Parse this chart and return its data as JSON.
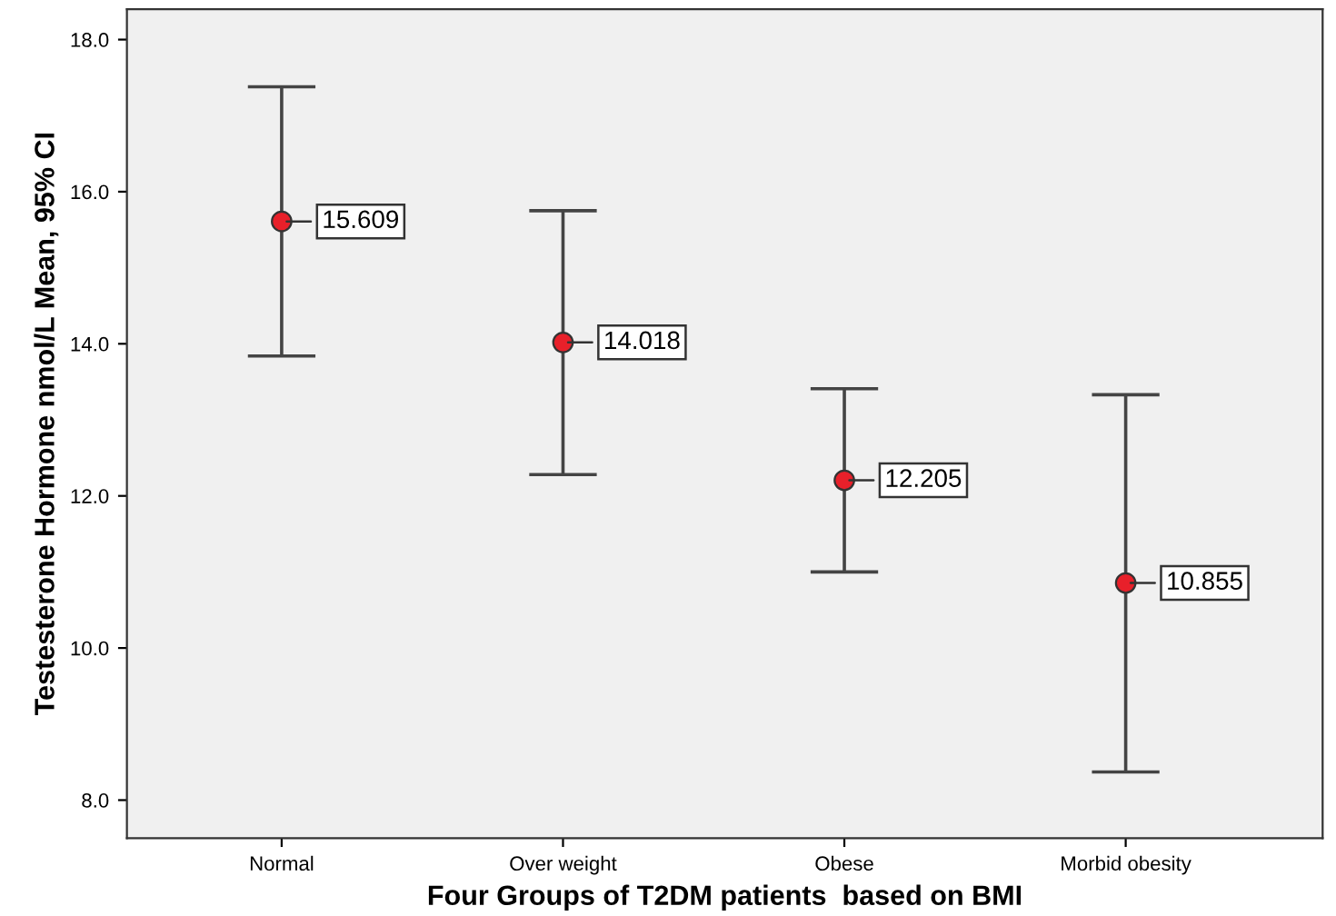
{
  "chart_data": {
    "type": "scatter",
    "xlabel": "Four Groups of T2DM patients  based on BMI",
    "ylabel": "Testesterone Hormone nmol/L Mean, 95% CI",
    "categories": [
      "Normal",
      "Over weight",
      "Obese",
      "Morbid obesity"
    ],
    "series": [
      {
        "color": "#e8202a",
        "values": [
          15.609,
          14.018,
          12.205,
          10.855
        ],
        "errors": [
          [
            13.84,
            17.38
          ],
          [
            12.28,
            15.75
          ],
          [
            11.0,
            13.41
          ],
          [
            8.37,
            13.33
          ]
        ]
      }
    ],
    "data_labels": true,
    "marker": "circle",
    "grid": false,
    "ylim": [
      7.5,
      18.4
    ],
    "yticks": [
      {
        "value": 8,
        "label": "8.0"
      },
      {
        "value": 10,
        "label": "10.0"
      },
      {
        "value": 12,
        "label": "12.0"
      },
      {
        "value": 14,
        "label": "14.0"
      },
      {
        "value": 16,
        "label": "16.0"
      },
      {
        "value": 18,
        "label": "18.0"
      }
    ]
  }
}
